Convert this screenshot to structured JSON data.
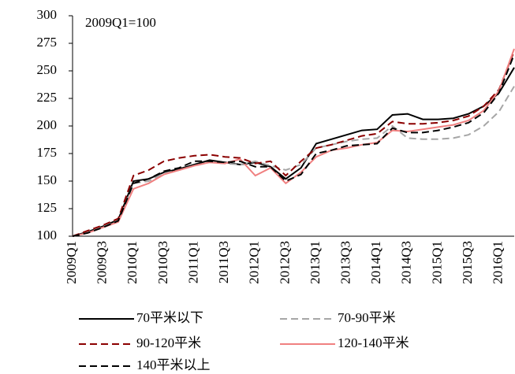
{
  "chart_data": {
    "type": "line",
    "annotation": "2009Q1=100",
    "categories": [
      "2009Q1",
      null,
      "2009Q3",
      null,
      "2010Q1",
      null,
      "2010Q3",
      null,
      "2011Q1",
      null,
      "2011Q3",
      null,
      "2012Q1",
      null,
      "2012Q3",
      null,
      "2013Q1",
      null,
      "2013Q3",
      null,
      "2014Q1",
      null,
      "2014Q3",
      null,
      "2015Q1",
      null,
      "2015Q3",
      null,
      "2016Q1",
      null
    ],
    "series": [
      {
        "name": "70平米以下",
        "color": "#000000",
        "dash": false,
        "values": [
          100,
          104,
          109,
          115,
          150,
          152,
          158,
          161,
          165,
          169,
          167,
          165,
          167,
          163,
          152,
          162,
          184,
          188,
          192,
          196,
          197,
          210,
          211,
          206,
          206,
          207,
          211,
          218,
          230,
          253
        ]
      },
      {
        "name": "70-90平米",
        "color": "#a6a6a6",
        "dash": true,
        "values": [
          100,
          104,
          109,
          115,
          148,
          150,
          157,
          160,
          164,
          167,
          166,
          165,
          168,
          164,
          160,
          165,
          180,
          183,
          186,
          188,
          189,
          200,
          189,
          188,
          188,
          189,
          192,
          200,
          213,
          236
        ]
      },
      {
        "name": "90-120平米",
        "color": "#8b0000",
        "dash": true,
        "values": [
          100,
          105,
          110,
          116,
          155,
          160,
          168,
          171,
          173,
          174,
          172,
          171,
          166,
          168,
          155,
          168,
          180,
          183,
          187,
          191,
          193,
          204,
          202,
          202,
          203,
          205,
          209,
          218,
          233,
          268
        ]
      },
      {
        "name": "120-140平米",
        "color": "#f08080",
        "dash": false,
        "values": [
          100,
          103,
          108,
          113,
          143,
          148,
          156,
          160,
          164,
          167,
          166,
          170,
          155,
          162,
          148,
          158,
          172,
          178,
          180,
          183,
          185,
          196,
          195,
          197,
          199,
          201,
          205,
          214,
          232,
          270
        ]
      },
      {
        "name": "140平米以上",
        "color": "#000000",
        "dash": true,
        "values": [
          100,
          103,
          108,
          114,
          148,
          152,
          159,
          162,
          168,
          168,
          167,
          168,
          163,
          163,
          150,
          156,
          175,
          178,
          182,
          183,
          184,
          198,
          194,
          194,
          196,
          199,
          203,
          212,
          230,
          265
        ]
      }
    ],
    "ylim": [
      100,
      300
    ],
    "yticks": [
      100,
      125,
      150,
      175,
      200,
      225,
      250,
      275,
      300
    ]
  }
}
